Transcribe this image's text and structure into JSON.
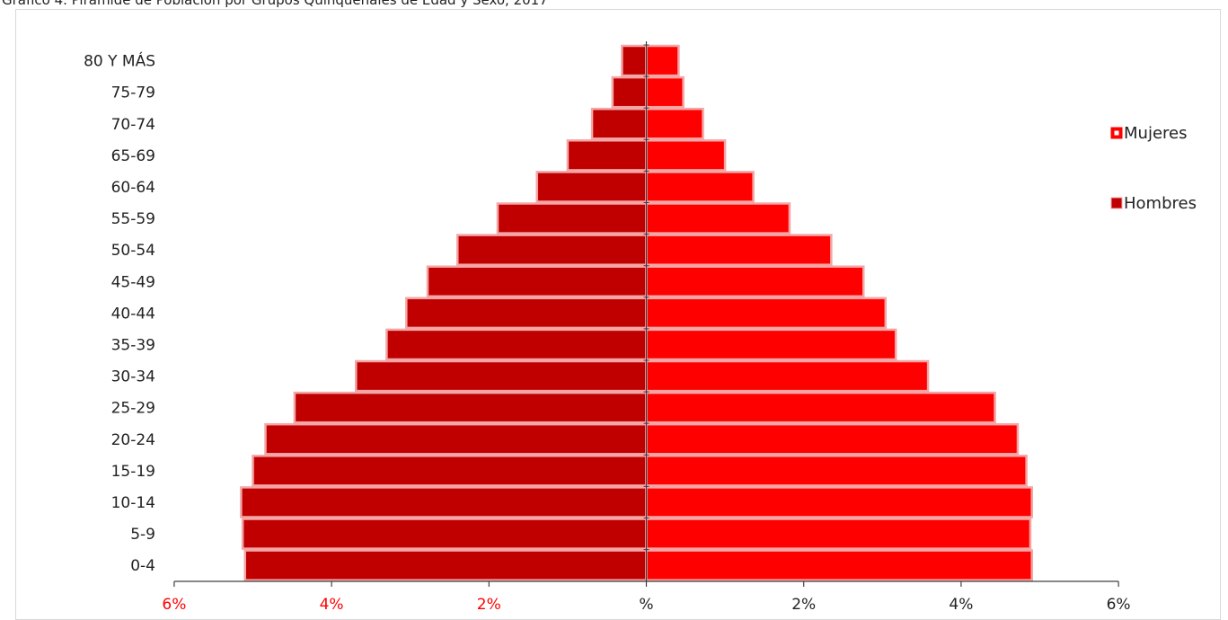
{
  "title": "Gráfico 4. Pirámide de Población por Grupos Quinquenales de Edad y Sexo, 2017",
  "chart_data": {
    "type": "bar",
    "orientation": "horizontal-population-pyramid",
    "title": "Gráfico 4. Pirámide de Población por Grupos Quinquenales de Edad y Sexo, 2017",
    "categories": [
      "0-4",
      "5-9",
      "10-14",
      "15-19",
      "20-24",
      "25-29",
      "30-34",
      "35-39",
      "40-44",
      "45-49",
      "50-54",
      "55-59",
      "60-64",
      "65-69",
      "70-74",
      "75-79",
      "80 Y MÁS"
    ],
    "series": [
      {
        "name": "Hombres",
        "side": "left",
        "values": [
          5.1,
          5.13,
          5.15,
          5.0,
          4.84,
          4.47,
          3.69,
          3.3,
          3.05,
          2.78,
          2.4,
          1.89,
          1.39,
          1.0,
          0.69,
          0.43,
          0.31
        ],
        "color": "#c00000"
      },
      {
        "name": "Mujeres",
        "side": "right",
        "values": [
          4.9,
          4.88,
          4.9,
          4.83,
          4.72,
          4.43,
          3.58,
          3.17,
          3.04,
          2.76,
          2.35,
          1.82,
          1.36,
          1.0,
          0.72,
          0.47,
          0.41
        ],
        "color": "#ff0000"
      }
    ],
    "xlim": [
      -6,
      6
    ],
    "x_ticks": [
      {
        "value": -6,
        "label": "6%"
      },
      {
        "value": -4,
        "label": "4%"
      },
      {
        "value": -2,
        "label": "2%"
      },
      {
        "value": 0,
        "label": "%"
      },
      {
        "value": 2,
        "label": "2%"
      },
      {
        "value": 4,
        "label": "4%"
      },
      {
        "value": 6,
        "label": "6%"
      }
    ],
    "negative_tick_color": "#ff0000",
    "positive_tick_color": "#222222",
    "legend": {
      "placement": "right",
      "entries": [
        "Mujeres",
        "Hombres"
      ]
    },
    "grid": false
  }
}
